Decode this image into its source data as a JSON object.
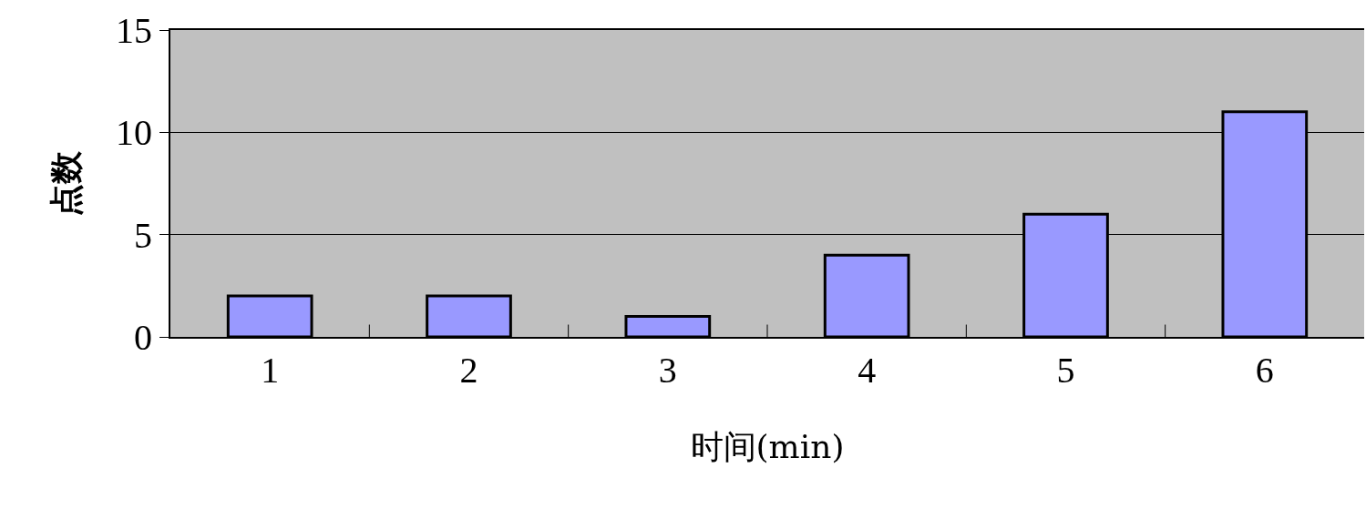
{
  "chart_data": {
    "type": "bar",
    "xlabel": "时间(min)",
    "ylabel": "点数",
    "categories": [
      "1",
      "2",
      "3",
      "4",
      "5",
      "6"
    ],
    "values": [
      2,
      2,
      1,
      4,
      6,
      11
    ],
    "color": "#9999ff",
    "ylim": [
      0,
      15
    ],
    "yticks": [
      0,
      5,
      10,
      15
    ],
    "grid": "y"
  }
}
